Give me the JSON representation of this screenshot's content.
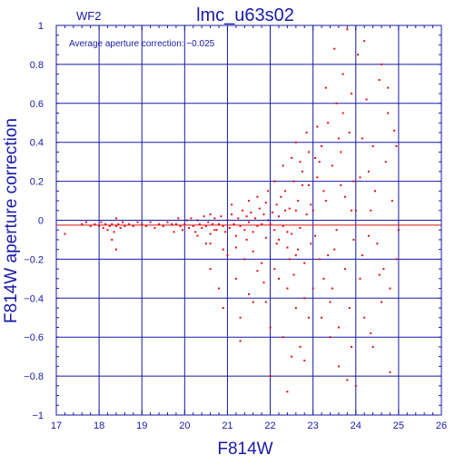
{
  "chart_data": {
    "type": "scatter",
    "panel_label": "WF2",
    "title": "lmc_u63s02",
    "annotation": "Average aperture correction: −0.025",
    "xlabel": "F814W",
    "ylabel": "F814W aperture correction",
    "xlim": [
      17,
      26
    ],
    "ylim": [
      -1,
      1
    ],
    "x_ticks": [
      17,
      18,
      19,
      20,
      21,
      22,
      23,
      24,
      25,
      26
    ],
    "y_ticks": [
      -1,
      -0.8,
      -0.6,
      -0.4,
      -0.2,
      0,
      0.2,
      0.4,
      0.6,
      0.8,
      1
    ],
    "x_tick_labels": [
      "17",
      "18",
      "19",
      "20",
      "21",
      "22",
      "23",
      "24",
      "25",
      "26"
    ],
    "y_tick_labels": [
      "−1",
      "−0.8",
      "−0.6",
      "−0.4",
      "−0.2",
      "0",
      "0.2",
      "0.4",
      "0.6",
      "0.8",
      "1"
    ],
    "grid": true,
    "reference_lines": [
      {
        "name": "zero",
        "y": 0,
        "color": "#1a1aa6"
      },
      {
        "name": "average",
        "y": -0.025,
        "color": "#e01010"
      }
    ],
    "points": [
      [
        17.2,
        -0.07
      ],
      [
        17.6,
        -0.02
      ],
      [
        17.7,
        -0.01
      ],
      [
        17.8,
        -0.03
      ],
      [
        17.9,
        -0.02
      ],
      [
        18.0,
        -0.03
      ],
      [
        18.05,
        -0.01
      ],
      [
        18.1,
        -0.04
      ],
      [
        18.15,
        -0.02
      ],
      [
        18.2,
        -0.05
      ],
      [
        18.25,
        -0.03
      ],
      [
        18.3,
        -0.02
      ],
      [
        18.35,
        -0.06
      ],
      [
        18.4,
        -0.03
      ],
      [
        18.4,
        0.01
      ],
      [
        18.45,
        -0.02
      ],
      [
        18.5,
        -0.04
      ],
      [
        18.55,
        -0.01
      ],
      [
        18.6,
        -0.03
      ],
      [
        18.3,
        -0.1
      ],
      [
        18.4,
        -0.15
      ],
      [
        18.7,
        -0.02
      ],
      [
        18.8,
        -0.03
      ],
      [
        18.9,
        -0.01
      ],
      [
        19.0,
        -0.02
      ],
      [
        19.1,
        -0.03
      ],
      [
        19.2,
        -0.01
      ],
      [
        19.3,
        -0.04
      ],
      [
        19.4,
        -0.02
      ],
      [
        19.5,
        -0.03
      ],
      [
        19.6,
        -0.01
      ],
      [
        19.7,
        -0.02
      ],
      [
        19.75,
        -0.06
      ],
      [
        19.8,
        -0.02
      ],
      [
        19.85,
        0.01
      ],
      [
        19.9,
        -0.03
      ],
      [
        19.95,
        -0.05
      ],
      [
        20.0,
        -0.02
      ],
      [
        20.05,
        0.0
      ],
      [
        20.1,
        -0.04
      ],
      [
        20.15,
        0.01
      ],
      [
        20.2,
        -0.03
      ],
      [
        20.25,
        -0.06
      ],
      [
        20.3,
        0.0
      ],
      [
        20.35,
        -0.02
      ],
      [
        20.4,
        -0.04
      ],
      [
        20.45,
        0.02
      ],
      [
        20.5,
        -0.03
      ],
      [
        20.55,
        -0.01
      ],
      [
        20.6,
        0.03
      ],
      [
        20.6,
        -0.07
      ],
      [
        20.65,
        -0.02
      ],
      [
        20.7,
        0.01
      ],
      [
        20.75,
        -0.05
      ],
      [
        20.8,
        -0.02
      ],
      [
        20.85,
        0.02
      ],
      [
        20.9,
        -0.03
      ],
      [
        20.95,
        -0.06
      ],
      [
        21.0,
        0.0
      ],
      [
        21.05,
        -0.04
      ],
      [
        21.1,
        0.03
      ],
      [
        21.15,
        -0.02
      ],
      [
        21.2,
        -0.08
      ],
      [
        21.25,
        0.01
      ],
      [
        21.3,
        -0.03
      ],
      [
        21.35,
        0.05
      ],
      [
        21.4,
        -0.05
      ],
      [
        21.45,
        0.02
      ],
      [
        21.5,
        -0.01
      ],
      [
        21.55,
        0.04
      ],
      [
        21.6,
        -0.06
      ],
      [
        21.65,
        0.01
      ],
      [
        21.7,
        -0.03
      ],
      [
        21.75,
        0.06
      ],
      [
        21.8,
        -0.02
      ],
      [
        21.85,
        0.03
      ],
      [
        21.9,
        -0.09
      ],
      [
        21.95,
        0.0
      ],
      [
        20.6,
        -0.12
      ],
      [
        20.9,
        -0.15
      ],
      [
        21.0,
        -0.18
      ],
      [
        21.2,
        -0.14
      ],
      [
        21.4,
        -0.2
      ],
      [
        21.6,
        -0.16
      ],
      [
        21.8,
        -0.22
      ],
      [
        21.1,
        0.08
      ],
      [
        21.5,
        0.1
      ],
      [
        21.7,
        0.12
      ],
      [
        21.9,
        0.09
      ],
      [
        20.8,
        -0.35
      ],
      [
        20.9,
        -0.45
      ],
      [
        21.2,
        -0.3
      ],
      [
        21.5,
        -0.38
      ],
      [
        21.7,
        -0.26
      ],
      [
        21.3,
        -0.5
      ],
      [
        21.9,
        -0.42
      ],
      [
        21.3,
        -0.62
      ],
      [
        20.6,
        -0.25
      ],
      [
        22.0,
        -0.02
      ],
      [
        22.05,
        0.04
      ],
      [
        22.1,
        -0.05
      ],
      [
        22.15,
        0.08
      ],
      [
        22.2,
        -0.1
      ],
      [
        22.25,
        0.12
      ],
      [
        22.3,
        -0.03
      ],
      [
        22.35,
        0.15
      ],
      [
        22.4,
        -0.14
      ],
      [
        22.45,
        0.06
      ],
      [
        22.5,
        -0.07
      ],
      [
        22.55,
        0.2
      ],
      [
        22.6,
        -0.18
      ],
      [
        22.65,
        0.1
      ],
      [
        22.7,
        -0.04
      ],
      [
        22.75,
        0.25
      ],
      [
        22.8,
        -0.22
      ],
      [
        22.85,
        0.03
      ],
      [
        22.9,
        0.18
      ],
      [
        22.95,
        -0.12
      ],
      [
        22.1,
        0.2
      ],
      [
        22.3,
        0.28
      ],
      [
        22.5,
        0.32
      ],
      [
        22.7,
        0.3
      ],
      [
        22.9,
        0.35
      ],
      [
        22.2,
        -0.3
      ],
      [
        22.4,
        -0.35
      ],
      [
        22.6,
        -0.45
      ],
      [
        22.8,
        -0.4
      ],
      [
        22.0,
        -0.55
      ],
      [
        22.3,
        -0.6
      ],
      [
        22.5,
        -0.7
      ],
      [
        22.0,
        -0.8
      ],
      [
        22.7,
        -0.65
      ],
      [
        22.9,
        -0.5
      ],
      [
        22.4,
        -0.88
      ],
      [
        22.8,
        -0.72
      ],
      [
        22.1,
        -0.25
      ],
      [
        22.6,
        0.4
      ],
      [
        22.85,
        0.45
      ],
      [
        23.0,
        0.05
      ],
      [
        23.05,
        -0.08
      ],
      [
        23.1,
        0.22
      ],
      [
        23.15,
        -0.2
      ],
      [
        23.2,
        0.38
      ],
      [
        23.25,
        -0.3
      ],
      [
        23.3,
        0.1
      ],
      [
        23.35,
        0.5
      ],
      [
        23.4,
        -0.42
      ],
      [
        23.45,
        0.28
      ],
      [
        23.5,
        -0.15
      ],
      [
        23.55,
        0.6
      ],
      [
        23.6,
        -0.55
      ],
      [
        23.65,
        0.35
      ],
      [
        23.7,
        0.75
      ],
      [
        23.75,
        -0.25
      ],
      [
        23.8,
        0.98
      ],
      [
        23.85,
        0.45
      ],
      [
        23.9,
        -0.65
      ],
      [
        23.95,
        0.2
      ],
      [
        23.1,
        0.48
      ],
      [
        23.3,
        0.68
      ],
      [
        23.5,
        0.88
      ],
      [
        23.7,
        0.55
      ],
      [
        23.9,
        0.65
      ],
      [
        23.2,
        -0.5
      ],
      [
        23.4,
        -0.6
      ],
      [
        23.6,
        -0.75
      ],
      [
        23.8,
        -0.82
      ],
      [
        23.0,
        -0.35
      ],
      [
        23.25,
        0.15
      ],
      [
        23.55,
        -0.05
      ],
      [
        23.75,
        0.12
      ],
      [
        23.95,
        -0.1
      ],
      [
        24.0,
        0.05
      ],
      [
        24.05,
        0.85
      ],
      [
        24.1,
        -0.3
      ],
      [
        24.15,
        0.42
      ],
      [
        24.2,
        -0.5
      ],
      [
        24.25,
        0.62
      ],
      [
        24.3,
        0.25
      ],
      [
        24.35,
        -0.58
      ],
      [
        24.4,
        0.38
      ],
      [
        24.5,
        -0.12
      ],
      [
        24.55,
        0.72
      ],
      [
        24.6,
        -0.42
      ],
      [
        24.7,
        0.3
      ],
      [
        24.8,
        -0.78
      ],
      [
        24.9,
        0.46
      ],
      [
        25.0,
        -0.05
      ],
      [
        24.45,
        0.15
      ],
      [
        24.65,
        -0.25
      ],
      [
        24.75,
        0.55
      ],
      [
        24.85,
        0.1
      ],
      [
        24.95,
        -0.2
      ],
      [
        24.0,
        -0.85
      ],
      [
        24.2,
        0.92
      ],
      [
        24.4,
        -0.65
      ],
      [
        24.6,
        0.8
      ],
      [
        24.8,
        -0.35
      ],
      [
        22.15,
        -0.12
      ],
      [
        22.55,
        -0.28
      ],
      [
        22.95,
        0.08
      ],
      [
        23.15,
        0.3
      ],
      [
        23.45,
        -0.35
      ],
      [
        23.65,
        0.18
      ],
      [
        23.85,
        -0.45
      ],
      [
        24.15,
        -0.18
      ],
      [
        24.35,
        0.05
      ],
      [
        24.55,
        -0.28
      ],
      [
        24.75,
        0.68
      ],
      [
        24.95,
        0.38
      ],
      [
        22.35,
        0.05
      ],
      [
        22.45,
        -0.2
      ],
      [
        22.65,
        -0.15
      ],
      [
        22.75,
        0.18
      ],
      [
        23.05,
        0.32
      ],
      [
        23.35,
        -0.18
      ],
      [
        23.6,
        0.42
      ],
      [
        23.9,
        0.05
      ],
      [
        24.1,
        0.22
      ],
      [
        24.3,
        -0.08
      ],
      [
        21.95,
        0.15
      ],
      [
        21.85,
        -0.32
      ],
      [
        21.6,
        -0.42
      ],
      [
        21.45,
        -0.1
      ],
      [
        20.7,
        -0.05
      ],
      [
        20.5,
        -0.12
      ],
      [
        20.3,
        -0.08
      ],
      [
        22.2,
        0.02
      ],
      [
        22.4,
        -0.06
      ],
      [
        22.6,
        0.05
      ]
    ]
  }
}
